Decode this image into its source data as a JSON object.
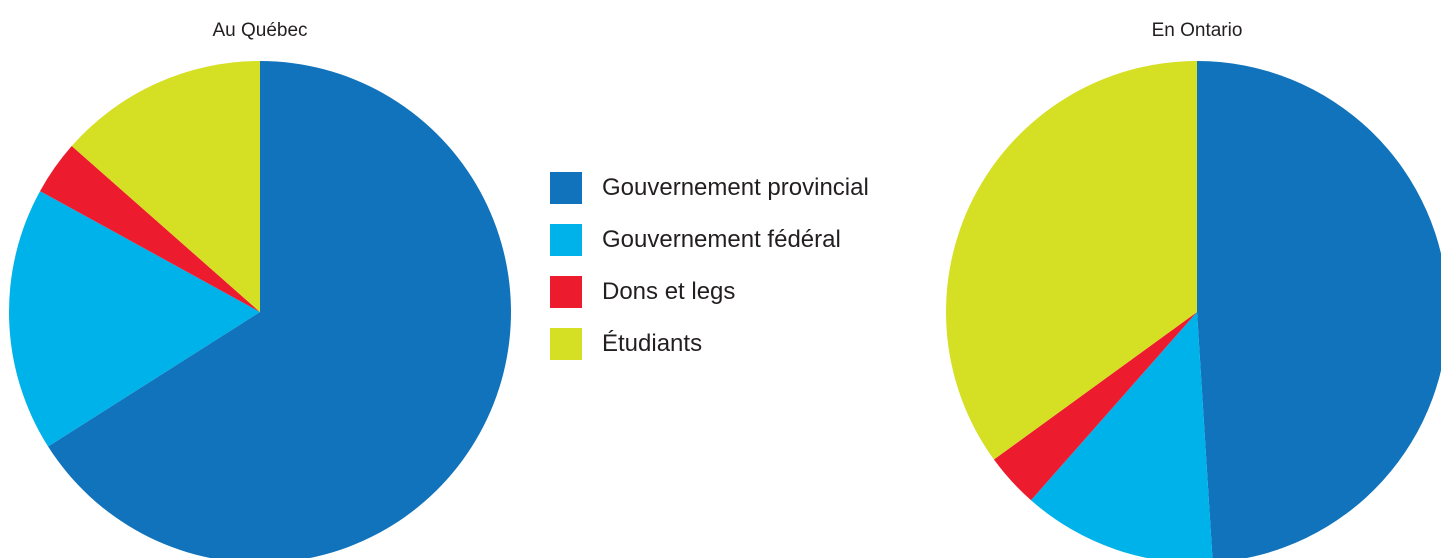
{
  "chart_data": [
    {
      "type": "pie",
      "title": "Au Québec",
      "start": "12 o'clock",
      "direction": "clockwise",
      "categories": [
        "Gouvernement provincial",
        "Gouvernement fédéral",
        "Dons et legs",
        "Étudiants"
      ],
      "values": [
        66,
        17,
        3.5,
        13.5
      ],
      "colors": [
        "#1073bb",
        "#00b2ea",
        "#ec1c2e",
        "#d5df23"
      ]
    },
    {
      "type": "pie",
      "title": "En Ontario",
      "start": "12 o'clock",
      "direction": "clockwise",
      "categories": [
        "Gouvernement provincial",
        "Gouvernement fédéral",
        "Dons et legs",
        "Étudiants"
      ],
      "values": [
        49,
        12.5,
        3.5,
        35
      ],
      "colors": [
        "#1073bb",
        "#00b2ea",
        "#ec1c2e",
        "#d5df23"
      ]
    }
  ],
  "legend": {
    "placement": "center",
    "items": [
      {
        "label": "Gouvernement provincial",
        "color": "#1073bb"
      },
      {
        "label": "Gouvernement fédéral",
        "color": "#00b2ea"
      },
      {
        "label": "Dons et legs",
        "color": "#ec1c2e"
      },
      {
        "label": "Étudiants",
        "color": "#d5df23"
      }
    ]
  }
}
